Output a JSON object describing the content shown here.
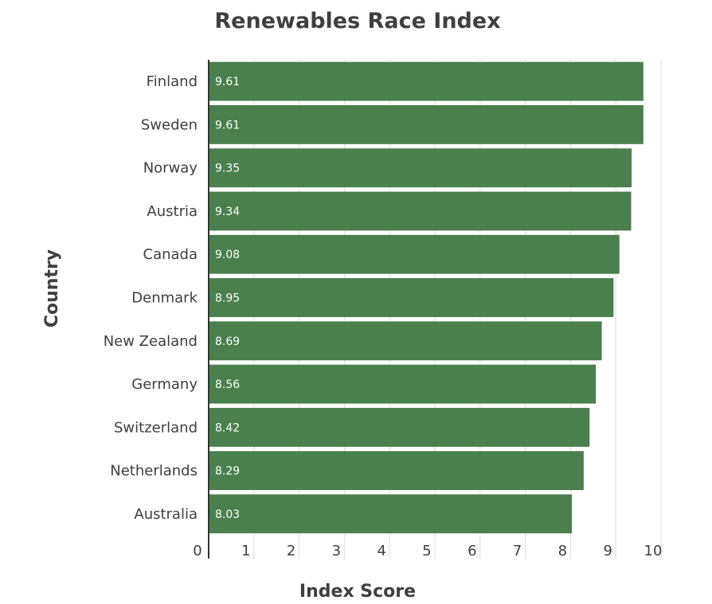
{
  "chart_data": {
    "type": "bar",
    "orientation": "horizontal",
    "title": "Renewables Race Index",
    "xlabel": "Index Score",
    "ylabel": "Country",
    "categories": [
      "Finland",
      "Sweden",
      "Norway",
      "Austria",
      "Canada",
      "Denmark",
      "New Zealand",
      "Germany",
      "Switzerland",
      "Netherlands",
      "Australia"
    ],
    "values": [
      9.61,
      9.61,
      9.35,
      9.34,
      9.08,
      8.95,
      8.69,
      8.56,
      8.42,
      8.29,
      8.03
    ],
    "value_labels": [
      "9.61",
      "9.61",
      "9.35",
      "9.34",
      "9.08",
      "8.95",
      "8.69",
      "8.56",
      "8.42",
      "8.29",
      "8.03"
    ],
    "xlim": [
      0,
      10
    ],
    "x_ticks": [
      "0",
      "1",
      "2",
      "3",
      "4",
      "5",
      "6",
      "7",
      "8",
      "9",
      "10"
    ],
    "grid": "vertical",
    "colors": {
      "bar": "#4a7f4e",
      "text": "#3f3f3f",
      "grid": "#dcdcdc",
      "axis": "#333333"
    }
  }
}
